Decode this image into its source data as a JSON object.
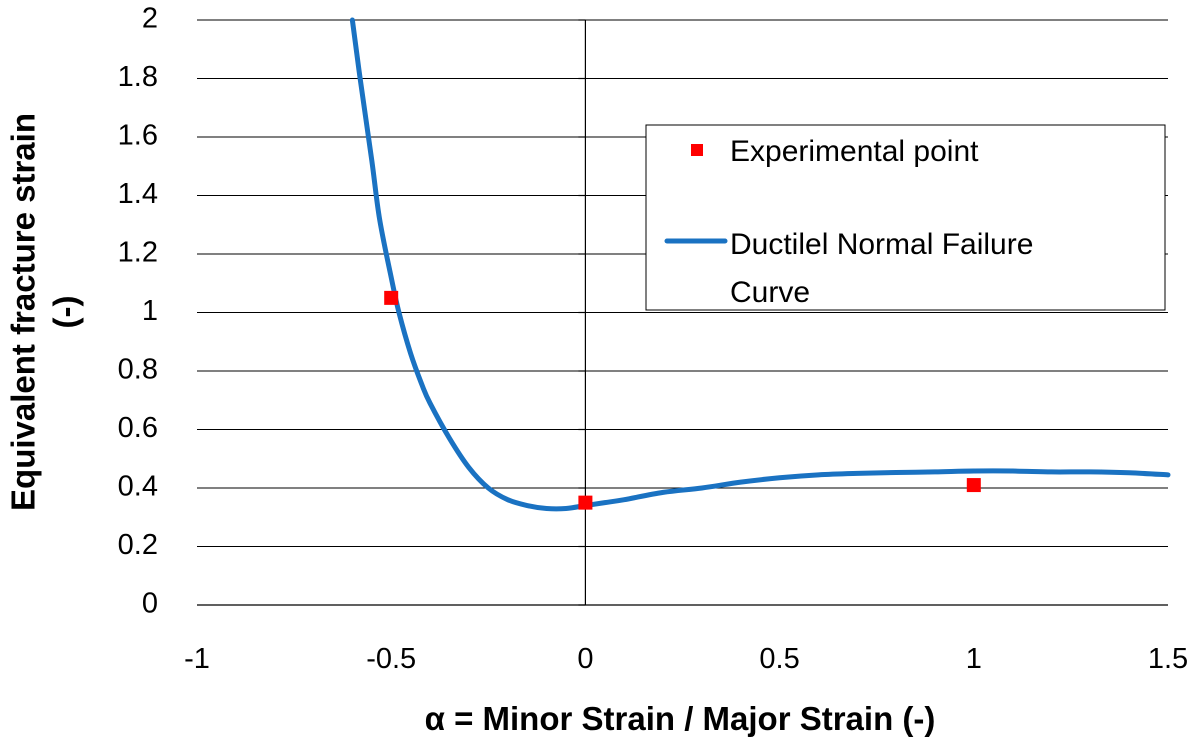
{
  "chart_data": {
    "type": "line",
    "xlabel": "α = Minor Strain / Major Strain (-)",
    "ylabel": [
      "Equivalent fracture strain",
      "(-)"
    ],
    "xlim": [
      -1,
      1.5
    ],
    "ylim": [
      0,
      2
    ],
    "x_ticks": [
      "-1",
      "-0.5",
      "0",
      "0.5",
      "1",
      "1.5"
    ],
    "x_tick_values": [
      -1,
      -0.5,
      0,
      0.5,
      1,
      1.5
    ],
    "y_ticks": [
      "0",
      "0.2",
      "0.4",
      "0.6",
      "0.8",
      "1",
      "1.2",
      "1.4",
      "1.6",
      "1.8",
      "2"
    ],
    "y_tick_values": [
      0,
      0.2,
      0.4,
      0.6,
      0.8,
      1,
      1.2,
      1.4,
      1.6,
      1.8,
      2
    ],
    "grid": "horizontal",
    "legend_position": "top-right",
    "series": [
      {
        "name": "Experimental point",
        "kind": "scatter",
        "marker": "square",
        "color": "#ff0000",
        "x": [
          -0.5,
          0,
          1
        ],
        "y": [
          1.05,
          0.35,
          0.41
        ]
      },
      {
        "name": "Ductilel Normal Failure Curve",
        "legend_lines": [
          "Ductilel Normal Failure",
          "Curve"
        ],
        "kind": "line",
        "color": "#1a72c2",
        "x": [
          -0.6,
          -0.58,
          -0.55,
          -0.53,
          -0.5,
          -0.48,
          -0.45,
          -0.42,
          -0.4,
          -0.35,
          -0.3,
          -0.25,
          -0.2,
          -0.15,
          -0.1,
          -0.05,
          0,
          0.05,
          0.1,
          0.2,
          0.3,
          0.4,
          0.5,
          0.6,
          0.7,
          0.8,
          0.9,
          1.0,
          1.1,
          1.2,
          1.3,
          1.4,
          1.5
        ],
        "y": [
          2.0,
          1.8,
          1.52,
          1.32,
          1.12,
          1.0,
          0.86,
          0.75,
          0.69,
          0.57,
          0.47,
          0.4,
          0.36,
          0.34,
          0.33,
          0.33,
          0.34,
          0.35,
          0.36,
          0.385,
          0.4,
          0.42,
          0.435,
          0.445,
          0.45,
          0.453,
          0.455,
          0.458,
          0.458,
          0.455,
          0.455,
          0.452,
          0.445
        ]
      }
    ]
  }
}
